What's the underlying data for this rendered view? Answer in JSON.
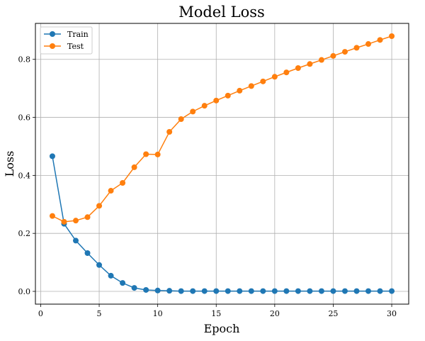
{
  "chart_data": {
    "type": "line",
    "title": "Model Loss",
    "xlabel": "Epoch",
    "ylabel": "Loss",
    "xlim": [
      -0.45,
      31.45
    ],
    "ylim": [
      -0.044,
      0.924
    ],
    "xticks": [
      0,
      5,
      10,
      15,
      20,
      25,
      30
    ],
    "yticks": [
      0.0,
      0.2,
      0.4,
      0.6,
      0.8
    ],
    "ytick_labels": [
      "0.0",
      "0.2",
      "0.4",
      "0.6",
      "0.8"
    ],
    "grid": true,
    "legend_position": "top-left",
    "x": [
      1,
      2,
      3,
      4,
      5,
      6,
      7,
      8,
      9,
      10,
      11,
      12,
      13,
      14,
      15,
      16,
      17,
      18,
      19,
      20,
      21,
      22,
      23,
      24,
      25,
      26,
      27,
      28,
      29,
      30
    ],
    "series": [
      {
        "name": "Train",
        "color": "#1f77b4",
        "values": [
          0.466,
          0.233,
          0.175,
          0.132,
          0.091,
          0.054,
          0.029,
          0.012,
          0.005,
          0.003,
          0.002,
          0.001,
          0.001,
          0.001,
          0.001,
          0.001,
          0.001,
          0.001,
          0.001,
          0.001,
          0.001,
          0.001,
          0.001,
          0.001,
          0.001,
          0.001,
          0.001,
          0.001,
          0.001,
          0.001
        ]
      },
      {
        "name": "Test",
        "color": "#ff7f0e",
        "values": [
          0.26,
          0.24,
          0.244,
          0.256,
          0.295,
          0.347,
          0.374,
          0.428,
          0.473,
          0.472,
          0.55,
          0.594,
          0.62,
          0.64,
          0.658,
          0.675,
          0.692,
          0.708,
          0.724,
          0.74,
          0.755,
          0.77,
          0.784,
          0.798,
          0.812,
          0.826,
          0.84,
          0.853,
          0.867,
          0.88
        ]
      }
    ]
  }
}
